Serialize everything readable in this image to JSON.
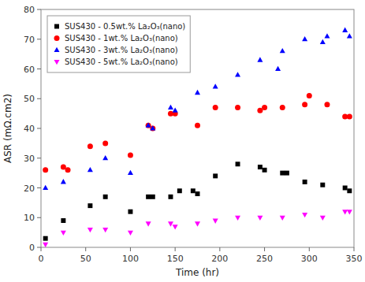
{
  "chart_data": {
    "type": "scatter",
    "xlabel": "Time (hr)",
    "ylabel": "ASR (mΩ.cm2)",
    "xlim": [
      0,
      350
    ],
    "ylim": [
      0,
      80
    ],
    "xticks": [
      0,
      50,
      100,
      150,
      200,
      250,
      300,
      350
    ],
    "yticks": [
      0,
      10,
      20,
      30,
      40,
      50,
      60,
      70,
      80
    ],
    "legend": "upper left",
    "series": [
      {
        "name": "SUS430 - 0.5wt.% La₂O₃(nano)",
        "color": "black",
        "marker": "square",
        "x": [
          5,
          25,
          55,
          72,
          100,
          120,
          125,
          145,
          155,
          170,
          175,
          195,
          220,
          245,
          250,
          270,
          275,
          295,
          315,
          340,
          345
        ],
        "values": [
          3,
          9,
          14,
          17,
          12,
          17,
          17,
          17,
          19,
          19,
          18,
          24,
          28,
          27,
          26,
          25,
          25,
          22,
          21,
          20,
          19
        ]
      },
      {
        "name": "SUS430 - 1wt.% La₂O₃(nano)",
        "color": "red",
        "marker": "circle",
        "x": [
          5,
          25,
          30,
          55,
          72,
          100,
          120,
          125,
          145,
          150,
          175,
          195,
          220,
          245,
          250,
          270,
          295,
          300,
          320,
          340,
          345
        ],
        "values": [
          26,
          27,
          26,
          34,
          35,
          31,
          41,
          40,
          45,
          45,
          41,
          47,
          47,
          46,
          47,
          47,
          48,
          51,
          48,
          44,
          44
        ]
      },
      {
        "name": "SUS430 - 3wt.% La₂O₃(nano)",
        "color": "blue",
        "marker": "triangle-up",
        "x": [
          5,
          25,
          55,
          72,
          100,
          120,
          125,
          145,
          150,
          175,
          195,
          220,
          245,
          265,
          270,
          295,
          315,
          320,
          340,
          345
        ],
        "values": [
          20,
          22,
          26,
          30,
          25,
          41,
          40,
          47,
          46,
          52,
          54,
          58,
          63,
          60,
          66,
          70,
          69,
          71,
          73,
          71
        ]
      },
      {
        "name": "SUS430 - 5wt.% La₂O₃(nano)",
        "color": "magenta",
        "marker": "triangle-down",
        "x": [
          5,
          25,
          55,
          72,
          100,
          120,
          145,
          150,
          175,
          195,
          220,
          245,
          270,
          295,
          315,
          340,
          345
        ],
        "values": [
          1,
          5,
          6,
          6,
          5,
          8,
          8,
          7,
          8,
          9,
          10,
          10,
          10,
          11,
          10,
          12,
          12
        ]
      }
    ]
  }
}
